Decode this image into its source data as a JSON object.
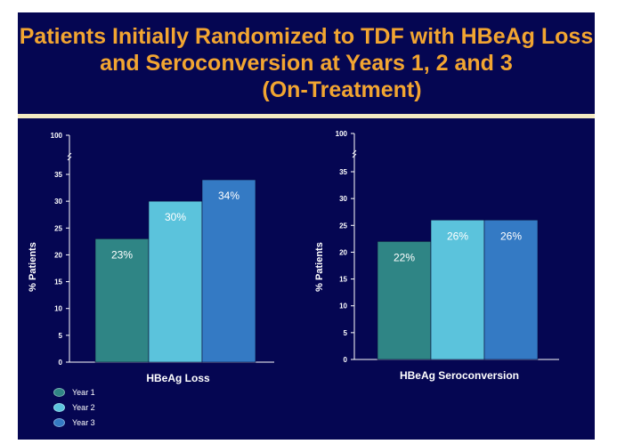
{
  "title": {
    "line1": "Patients Initially Randomized to TDF with HBeAg Loss",
    "line2": "and Seroconversion at Years 1, 2 and 3",
    "line3": "(On-Treatment)"
  },
  "colors": {
    "background": "#050652",
    "title": "#f2a531",
    "rule": "#f4ebc2",
    "year1": "#2f8585",
    "year2": "#5bc3dc",
    "year3": "#347ac4"
  },
  "legend": [
    {
      "label": "Year 1",
      "color": "#2f8585"
    },
    {
      "label": "Year 2",
      "color": "#5bc3dc"
    },
    {
      "label": "Year 3",
      "color": "#347ac4"
    }
  ],
  "chart_data": [
    {
      "type": "bar",
      "ylabel": "% Patients",
      "xlabel": "HBeAg Loss",
      "ytick_labels": [
        "0",
        "5",
        "10",
        "15",
        "20",
        "25",
        "30",
        "35",
        "100"
      ],
      "axis_break": true,
      "ylim": [
        0,
        35
      ],
      "series": [
        {
          "name": "Year 1",
          "value": 23,
          "label": "23%"
        },
        {
          "name": "Year 2",
          "value": 30,
          "label": "30%"
        },
        {
          "name": "Year 3",
          "value": 34,
          "label": "34%"
        }
      ]
    },
    {
      "type": "bar",
      "ylabel": "% Patients",
      "xlabel": "HBeAg Seroconversion",
      "ytick_labels": [
        "0",
        "5",
        "10",
        "15",
        "20",
        "25",
        "30",
        "35",
        "100"
      ],
      "axis_break": true,
      "ylim": [
        0,
        35
      ],
      "series": [
        {
          "name": "Year 1",
          "value": 22,
          "label": "22%"
        },
        {
          "name": "Year 2",
          "value": 26,
          "label": "26%"
        },
        {
          "name": "Year 3",
          "value": 26,
          "label": "26%"
        }
      ]
    }
  ]
}
